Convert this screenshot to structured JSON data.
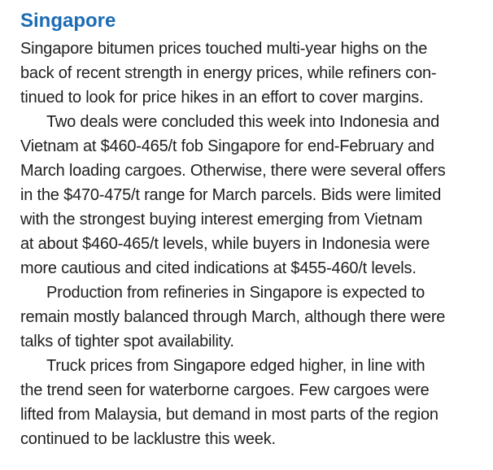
{
  "colors": {
    "heading_accent": "#1b6bb5",
    "body_text": "#1f1f1f",
    "background": "#ffffff"
  },
  "article": {
    "heading": "Singapore",
    "paragraphs": [
      {
        "lines": [
          "Singapore bitumen prices touched multi-year highs on the",
          "back of recent strength in energy prices, while refiners con-",
          "tinued to look for price hikes in an effort to cover margins."
        ]
      },
      {
        "lines": [
          "Two deals were concluded this week into Indonesia and",
          "Vietnam at $460-465/t fob Singapore for end-February and",
          "March loading cargoes. Otherwise, there were several offers",
          "in the $470-475/t range for March parcels. Bids were limited",
          "with the strongest buying interest emerging from Vietnam",
          "at about $460-465/t levels, while buyers in Indonesia were",
          "more cautious and cited indications at $455-460/t levels."
        ]
      },
      {
        "lines": [
          "Production from refineries in Singapore is expected to",
          "remain mostly balanced through March, although there were",
          "talks of tighter spot availability."
        ]
      },
      {
        "lines": [
          "Truck prices from Singapore edged higher, in line with",
          "the trend seen for waterborne cargoes. Few cargoes were",
          "lifted from Malaysia, but demand in most parts of the region",
          "continued to be lacklustre this week."
        ]
      }
    ]
  }
}
